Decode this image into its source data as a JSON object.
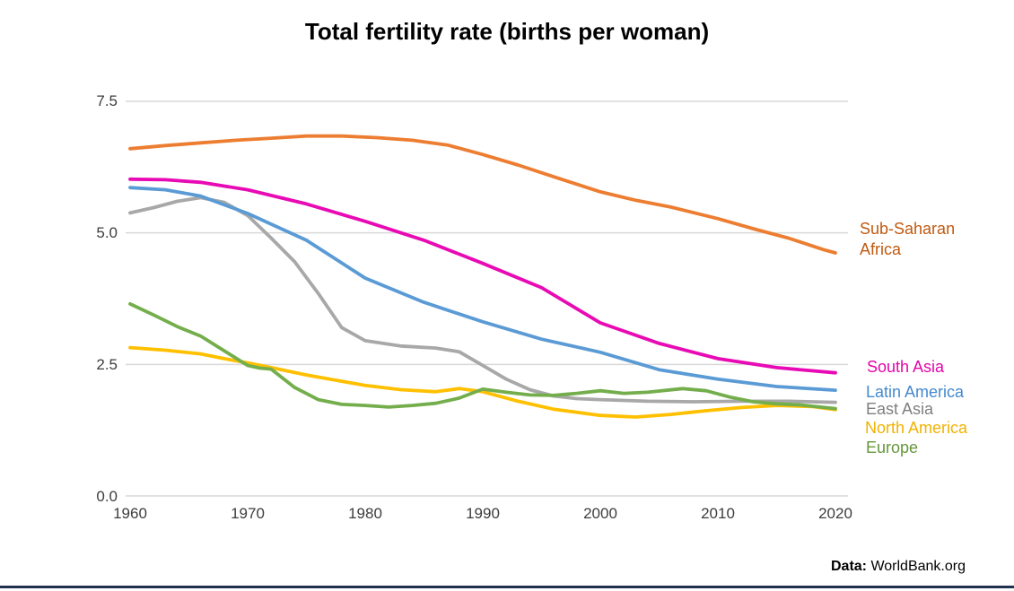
{
  "title": "Total fertility rate (births per woman)",
  "source": {
    "prefix": "Data:",
    "text": " WorldBank.org"
  },
  "chart_data": {
    "type": "line",
    "title": "Total fertility rate (births per woman)",
    "xlabel": "",
    "ylabel": "",
    "xlim": [
      1958.5,
      2021
    ],
    "ylim": [
      0,
      7.5
    ],
    "grid": "horizontal",
    "grid_color": "#d9d9d9",
    "legend_position": "right of line ends",
    "y_ticks": [
      {
        "value": 7.5,
        "label": "7.5"
      },
      {
        "value": 5.0,
        "label": "5.0"
      },
      {
        "value": 2.5,
        "label": "2.5"
      },
      {
        "value": 0.0,
        "label": "0.0"
      }
    ],
    "x_ticks": [
      {
        "value": 1960,
        "label": "1960"
      },
      {
        "value": 1970,
        "label": "1970"
      },
      {
        "value": 1980,
        "label": "1980"
      },
      {
        "value": 1990,
        "label": "1990"
      },
      {
        "value": 2000,
        "label": "2000"
      },
      {
        "value": 2010,
        "label": "2010"
      },
      {
        "value": 2020,
        "label": "2020"
      }
    ],
    "series": [
      {
        "id": "north_america",
        "name": "North America",
        "legend_lines": [
          "North America"
        ],
        "color": "#FFC000",
        "label_color": "#F2B200",
        "points": [
          [
            1960,
            2.82
          ],
          [
            1963,
            2.77
          ],
          [
            1966,
            2.7
          ],
          [
            1968,
            2.61
          ],
          [
            1970,
            2.53
          ],
          [
            1972,
            2.44
          ],
          [
            1975,
            2.3
          ],
          [
            1978,
            2.18
          ],
          [
            1980,
            2.1
          ],
          [
            1983,
            2.02
          ],
          [
            1986,
            1.98
          ],
          [
            1988,
            2.04
          ],
          [
            1990,
            1.98
          ],
          [
            1993,
            1.8
          ],
          [
            1996,
            1.65
          ],
          [
            2000,
            1.53
          ],
          [
            2003,
            1.5
          ],
          [
            2006,
            1.55
          ],
          [
            2009,
            1.62
          ],
          [
            2012,
            1.68
          ],
          [
            2015,
            1.72
          ],
          [
            2018,
            1.7
          ],
          [
            2020,
            1.64
          ]
        ]
      },
      {
        "id": "east_asia",
        "name": "East Asia",
        "legend_lines": [
          "East Asia"
        ],
        "color": "#A8A8A8",
        "label_color": "#7f7f7f",
        "points": [
          [
            1960,
            5.38
          ],
          [
            1962,
            5.48
          ],
          [
            1964,
            5.6
          ],
          [
            1966,
            5.67
          ],
          [
            1968,
            5.58
          ],
          [
            1970,
            5.33
          ],
          [
            1972,
            4.9
          ],
          [
            1974,
            4.45
          ],
          [
            1976,
            3.85
          ],
          [
            1978,
            3.2
          ],
          [
            1980,
            2.95
          ],
          [
            1983,
            2.85
          ],
          [
            1986,
            2.81
          ],
          [
            1988,
            2.74
          ],
          [
            1990,
            2.48
          ],
          [
            1992,
            2.22
          ],
          [
            1994,
            2.02
          ],
          [
            1996,
            1.9
          ],
          [
            1998,
            1.85
          ],
          [
            2000,
            1.83
          ],
          [
            2004,
            1.8
          ],
          [
            2008,
            1.79
          ],
          [
            2012,
            1.8
          ],
          [
            2016,
            1.8
          ],
          [
            2020,
            1.78
          ]
        ]
      },
      {
        "id": "europe",
        "name": "Europe",
        "legend_lines": [
          "Europe"
        ],
        "color": "#74AE4C",
        "label_color": "#64973B",
        "points": [
          [
            1960,
            3.65
          ],
          [
            1962,
            3.44
          ],
          [
            1964,
            3.22
          ],
          [
            1966,
            3.04
          ],
          [
            1968,
            2.76
          ],
          [
            1970,
            2.48
          ],
          [
            1971,
            2.43
          ],
          [
            1972,
            2.41
          ],
          [
            1974,
            2.06
          ],
          [
            1976,
            1.83
          ],
          [
            1978,
            1.74
          ],
          [
            1980,
            1.72
          ],
          [
            1982,
            1.69
          ],
          [
            1984,
            1.72
          ],
          [
            1986,
            1.76
          ],
          [
            1988,
            1.86
          ],
          [
            1990,
            2.03
          ],
          [
            1992,
            1.97
          ],
          [
            1994,
            1.92
          ],
          [
            1996,
            1.91
          ],
          [
            1998,
            1.95
          ],
          [
            2000,
            2.0
          ],
          [
            2002,
            1.95
          ],
          [
            2004,
            1.97
          ],
          [
            2007,
            2.04
          ],
          [
            2009,
            2.0
          ],
          [
            2011,
            1.88
          ],
          [
            2013,
            1.79
          ],
          [
            2015,
            1.75
          ],
          [
            2017,
            1.73
          ],
          [
            2020,
            1.66
          ]
        ]
      },
      {
        "id": "latin_america",
        "name": "Latin America",
        "legend_lines": [
          "Latin America"
        ],
        "color": "#5B9BD5",
        "label_color": "#4489CE",
        "points": [
          [
            1960,
            5.86
          ],
          [
            1963,
            5.82
          ],
          [
            1966,
            5.7
          ],
          [
            1970,
            5.37
          ],
          [
            1975,
            4.86
          ],
          [
            1980,
            4.14
          ],
          [
            1985,
            3.68
          ],
          [
            1990,
            3.31
          ],
          [
            1995,
            2.98
          ],
          [
            2000,
            2.73
          ],
          [
            2005,
            2.4
          ],
          [
            2010,
            2.22
          ],
          [
            2015,
            2.08
          ],
          [
            2020,
            2.01
          ]
        ]
      },
      {
        "id": "south_asia",
        "name": "South Asia",
        "legend_lines": [
          "South Asia"
        ],
        "color": "#E80AB4",
        "label_color": "#E305A8",
        "points": [
          [
            1960,
            6.02
          ],
          [
            1963,
            6.01
          ],
          [
            1966,
            5.96
          ],
          [
            1970,
            5.82
          ],
          [
            1975,
            5.55
          ],
          [
            1980,
            5.22
          ],
          [
            1985,
            4.86
          ],
          [
            1990,
            4.42
          ],
          [
            1995,
            3.96
          ],
          [
            2000,
            3.29
          ],
          [
            2005,
            2.9
          ],
          [
            2010,
            2.61
          ],
          [
            2015,
            2.44
          ],
          [
            2020,
            2.34
          ]
        ]
      },
      {
        "id": "sub_saharan_africa",
        "name": "Sub-Saharan Africa",
        "legend_lines": [
          "Sub-Saharan",
          "Africa"
        ],
        "color": "#EC7D31",
        "label_color": "#C05A11",
        "points": [
          [
            1960,
            6.6
          ],
          [
            1963,
            6.66
          ],
          [
            1966,
            6.71
          ],
          [
            1969,
            6.76
          ],
          [
            1972,
            6.8
          ],
          [
            1975,
            6.84
          ],
          [
            1978,
            6.84
          ],
          [
            1981,
            6.81
          ],
          [
            1984,
            6.76
          ],
          [
            1987,
            6.67
          ],
          [
            1990,
            6.49
          ],
          [
            1993,
            6.29
          ],
          [
            1996,
            6.07
          ],
          [
            2000,
            5.78
          ],
          [
            2003,
            5.62
          ],
          [
            2006,
            5.49
          ],
          [
            2010,
            5.27
          ],
          [
            2013,
            5.08
          ],
          [
            2016,
            4.9
          ],
          [
            2019,
            4.68
          ],
          [
            2020,
            4.62
          ]
        ]
      }
    ]
  }
}
